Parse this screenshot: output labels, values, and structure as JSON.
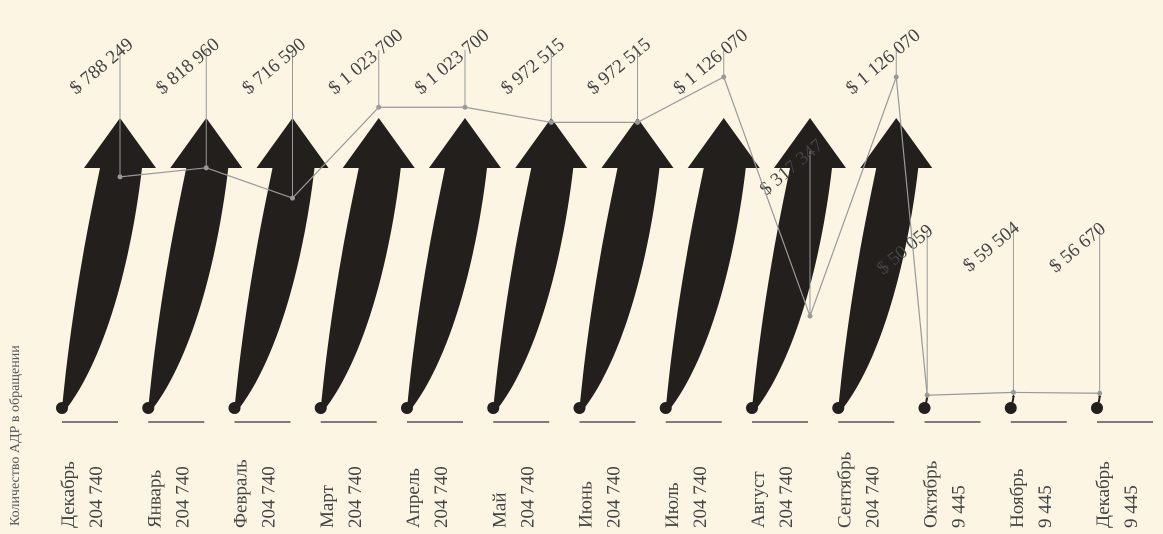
{
  "chart_data": {
    "type": "arrow-line",
    "y_axis_label": "Количество АДР в обращении",
    "categories": [
      "Декабрь",
      "Январь",
      "Февраль",
      "Март",
      "Апрель",
      "Май",
      "Июнь",
      "Июль",
      "Август",
      "Сентябрь",
      "Октябрь",
      "Ноябрь",
      "Декабрь"
    ],
    "counts": [
      204740,
      204740,
      204740,
      204740,
      204740,
      204740,
      204740,
      204740,
      204740,
      204740,
      9445,
      9445,
      9445
    ],
    "count_labels": [
      "204 740",
      "204 740",
      "204 740",
      "204 740",
      "204 740",
      "204 740",
      "204 740",
      "204 740",
      "204 740",
      "204 740",
      "9 445",
      "9 445",
      "9 445"
    ],
    "values": [
      788249,
      818960,
      716590,
      1023700,
      1023700,
      972515,
      972515,
      1126070,
      317347,
      1126070,
      50059,
      59504,
      56670
    ],
    "value_labels": [
      "$ 788 249",
      "$ 818 960",
      "$ 716 590",
      "$ 1 023 700",
      "$ 1 023 700",
      "$ 972 515",
      "$ 972 515",
      "$ 1 126 070",
      "$ 317 347",
      "$ 1 126 070",
      "$ 50 059",
      "$ 59 504",
      "$ 56 670"
    ],
    "arrow_color": "#221f1c",
    "line_color": "#999999"
  }
}
